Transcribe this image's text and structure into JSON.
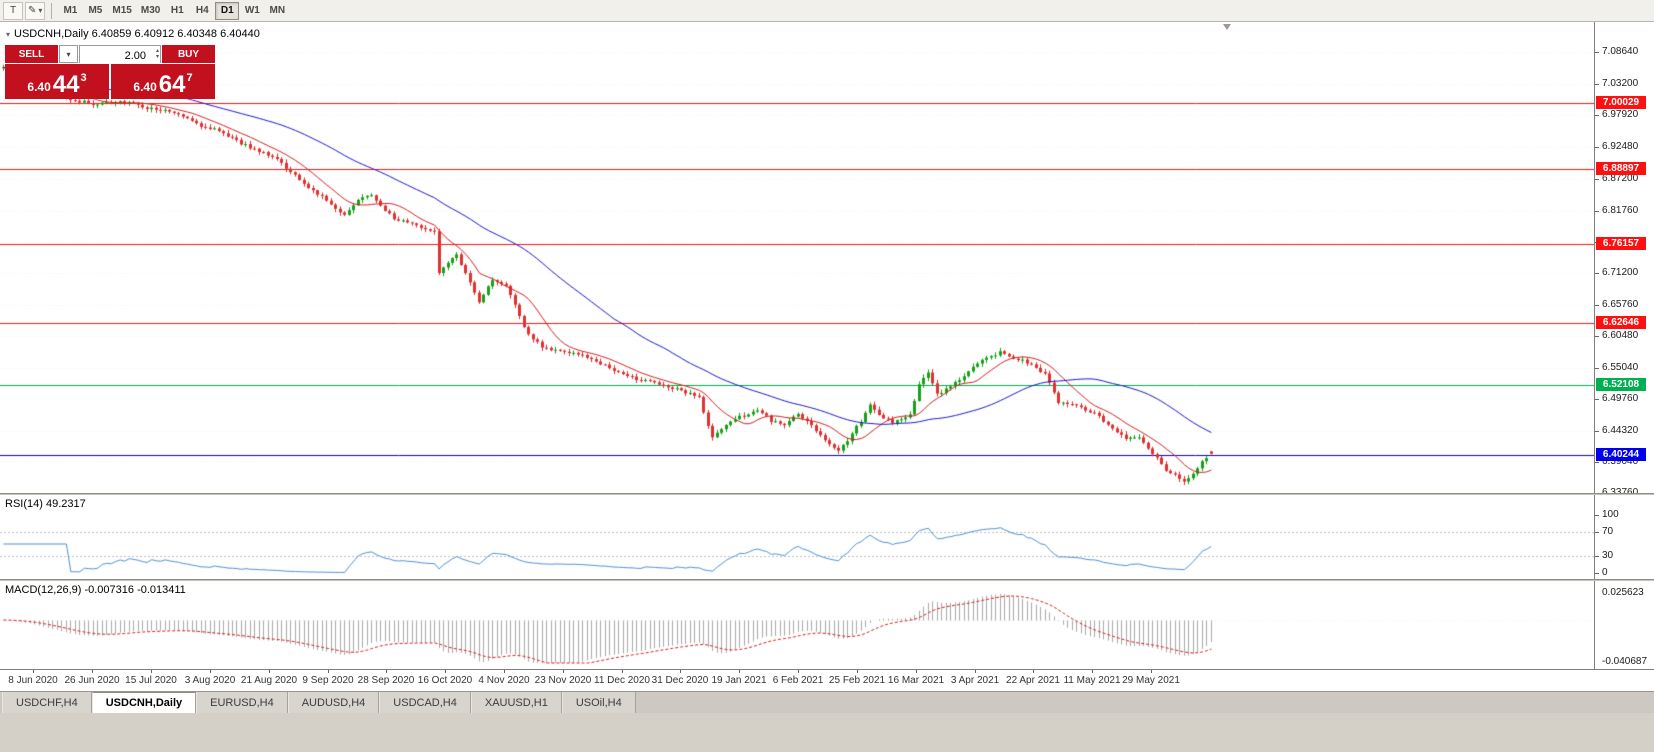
{
  "toolbar": {
    "cursor_tool": "T",
    "pencil_glyph": "✎",
    "dropdown_glyph": "▾",
    "timeframes": [
      "M1",
      "M5",
      "M15",
      "M30",
      "H1",
      "H4",
      "D1",
      "W1",
      "MN"
    ],
    "active_timeframe": "D1"
  },
  "chart": {
    "title": "USDCNH,Daily 6.40859 6.40912 6.40348 6.40440",
    "collapse_glyph": "▾"
  },
  "trade_panel": {
    "sell_label": "SELL",
    "buy_label": "BUY",
    "volume": "2.00",
    "combo_glyph": "▾",
    "spin_up": "▴",
    "spin_down": "▾",
    "sell_price": {
      "prefix": "6.40",
      "big": "44",
      "sup": "3"
    },
    "buy_price": {
      "prefix": "6.40",
      "big": "64",
      "sup": "7"
    }
  },
  "tabs": [
    {
      "label": "USDCHF,H4",
      "active": false
    },
    {
      "label": "USDCNH,Daily",
      "active": true
    },
    {
      "label": "EURUSD,H4",
      "active": false
    },
    {
      "label": "AUDUSD,H4",
      "active": false
    },
    {
      "label": "USDCAD,H4",
      "active": false
    },
    {
      "label": "XAUUSD,H1",
      "active": false
    },
    {
      "label": "USOil,H4",
      "active": false
    }
  ],
  "colors": {
    "up": "#18a018",
    "down": "#e03030",
    "ma_fast": "#d02020",
    "ma_slow": "#1818c8",
    "rsi_line": "#4f8fd0",
    "rsi_level": "#c0c0c0",
    "macd_hist": "#a8a8a8",
    "macd_signal": "#d02020",
    "grid": "#f0f0f0",
    "level_green": "#00b050",
    "level_blue": "#0000ee",
    "level_red": "#ff1010",
    "panel_red": "#c3101e"
  },
  "chart_data": {
    "type": "candlestick",
    "symbol": "USDCNH",
    "timeframe": "Daily",
    "n_candles": 270,
    "price_range": {
      "top": 7.1379,
      "bottom": 6.3379
    },
    "last": {
      "open": 6.40859,
      "high": 6.40912,
      "low": 6.40348,
      "close": 6.4044
    },
    "price_path": [
      [
        0,
        7.06
      ],
      [
        8,
        7.036
      ],
      [
        15,
        7.006
      ],
      [
        21,
        6.998
      ],
      [
        25,
        7.004
      ],
      [
        28,
        7.0
      ],
      [
        31,
        6.993
      ],
      [
        34,
        6.99
      ],
      [
        37,
        6.985
      ],
      [
        40,
        6.977
      ],
      [
        44,
        6.962
      ],
      [
        47,
        6.955
      ],
      [
        50,
        6.945
      ],
      [
        54,
        6.928
      ],
      [
        58,
        6.915
      ],
      [
        61,
        6.903
      ],
      [
        64,
        6.885
      ],
      [
        66,
        6.868
      ],
      [
        69,
        6.852
      ],
      [
        72,
        6.835
      ],
      [
        74,
        6.82
      ],
      [
        76,
        6.808
      ],
      [
        79,
        6.836
      ],
      [
        82,
        6.845
      ],
      [
        85,
        6.818
      ],
      [
        87,
        6.805
      ],
      [
        90,
        6.796
      ],
      [
        93,
        6.789
      ],
      [
        96,
        6.784
      ],
      [
        97,
        6.714
      ],
      [
        99,
        6.728
      ],
      [
        101,
        6.741
      ],
      [
        103,
        6.712
      ],
      [
        106,
        6.662
      ],
      [
        109,
        6.701
      ],
      [
        112,
        6.69
      ],
      [
        114,
        6.659
      ],
      [
        116,
        6.618
      ],
      [
        118,
        6.6
      ],
      [
        120,
        6.586
      ],
      [
        123,
        6.579
      ],
      [
        127,
        6.577
      ],
      [
        131,
        6.567
      ],
      [
        135,
        6.549
      ],
      [
        139,
        6.535
      ],
      [
        143,
        6.529
      ],
      [
        147,
        6.521
      ],
      [
        151,
        6.511
      ],
      [
        155,
        6.501
      ],
      [
        157,
        6.452
      ],
      [
        158,
        6.431
      ],
      [
        160,
        6.448
      ],
      [
        162,
        6.461
      ],
      [
        165,
        6.47
      ],
      [
        168,
        6.479
      ],
      [
        171,
        6.461
      ],
      [
        174,
        6.455
      ],
      [
        177,
        6.471
      ],
      [
        180,
        6.452
      ],
      [
        182,
        6.437
      ],
      [
        184,
        6.42
      ],
      [
        186,
        6.409
      ],
      [
        188,
        6.428
      ],
      [
        191,
        6.461
      ],
      [
        193,
        6.489
      ],
      [
        195,
        6.469
      ],
      [
        198,
        6.458
      ],
      [
        200,
        6.464
      ],
      [
        202,
        6.472
      ],
      [
        204,
        6.521
      ],
      [
        206,
        6.541
      ],
      [
        208,
        6.507
      ],
      [
        210,
        6.513
      ],
      [
        212,
        6.525
      ],
      [
        214,
        6.537
      ],
      [
        217,
        6.557
      ],
      [
        220,
        6.571
      ],
      [
        222,
        6.577
      ],
      [
        224,
        6.569
      ],
      [
        227,
        6.564
      ],
      [
        230,
        6.551
      ],
      [
        232,
        6.54
      ],
      [
        235,
        6.492
      ],
      [
        238,
        6.49
      ],
      [
        241,
        6.479
      ],
      [
        244,
        6.468
      ],
      [
        247,
        6.446
      ],
      [
        250,
        6.432
      ],
      [
        253,
        6.434
      ],
      [
        255,
        6.413
      ],
      [
        257,
        6.399
      ],
      [
        259,
        6.377
      ],
      [
        261,
        6.367
      ],
      [
        263,
        6.359
      ],
      [
        265,
        6.371
      ],
      [
        267,
        6.393
      ],
      [
        269,
        6.4044
      ]
    ],
    "ma_fast_period": 10,
    "ma_slow_period": 40,
    "price_axis_ticks": [
      {
        "label": "7.08640",
        "value": 7.0864
      },
      {
        "label": "7.03200",
        "value": 7.032
      },
      {
        "label": "6.97920",
        "value": 6.9792
      },
      {
        "label": "6.92480",
        "value": 6.9248
      },
      {
        "label": "6.87200",
        "value": 6.872
      },
      {
        "label": "6.81760",
        "value": 6.8176
      },
      {
        "label": "6.76480",
        "value": 6.7648
      },
      {
        "label": "6.71200",
        "value": 6.712
      },
      {
        "label": "6.65760",
        "value": 6.6576
      },
      {
        "label": "6.60480",
        "value": 6.6048
      },
      {
        "label": "6.55040",
        "value": 6.5504
      },
      {
        "label": "6.49760",
        "value": 6.4976
      },
      {
        "label": "6.44320",
        "value": 6.4432
      },
      {
        "label": "6.39040",
        "value": 6.3904
      },
      {
        "label": "6.33760",
        "value": 6.3376
      }
    ],
    "levels": [
      {
        "label": "7.00029",
        "value": 7.00029,
        "color": "#ff1010"
      },
      {
        "label": "6.88897",
        "value": 6.88897,
        "color": "#ff1010"
      },
      {
        "label": "6.76157",
        "value": 6.76157,
        "color": "#ff1010"
      },
      {
        "label": "6.62646",
        "value": 6.62646,
        "color": "#ff1010"
      },
      {
        "label": "6.52108",
        "value": 6.52108,
        "color": "#00b050"
      },
      {
        "label": "6.40244",
        "value": 6.40244,
        "color": "#0000ee"
      }
    ],
    "rsi": {
      "label": "RSI(14) 49.2317",
      "period": 14,
      "current": "49.2317",
      "axis": [
        {
          "label": "100",
          "value": 100
        },
        {
          "label": "70",
          "value": 70
        },
        {
          "label": "30",
          "value": 30
        },
        {
          "label": "0",
          "value": 0
        }
      ]
    },
    "macd": {
      "label": "MACD(12,26,9) -0.007316 -0.013411",
      "fast": 12,
      "slow": 26,
      "signal_period": 9,
      "main_current": "-0.007316",
      "signal_current": "-0.013411",
      "axis_max": "0.025623",
      "axis_min": "-0.040687"
    },
    "date_labels": [
      "8 Jun 2020",
      "26 Jun 2020",
      "15 Jul 2020",
      "3 Aug 2020",
      "21 Aug 2020",
      "9 Sep 2020",
      "28 Sep 2020",
      "16 Oct 2020",
      "4 Nov 2020",
      "23 Nov 2020",
      "11 Dec 2020",
      "31 Dec 2020",
      "19 Jan 2021",
      "6 Feb 2021",
      "25 Feb 2021",
      "16 Mar 2021",
      "3 Apr 2021",
      "22 Apr 2021",
      "11 May 2021",
      "29 May 2021"
    ]
  }
}
